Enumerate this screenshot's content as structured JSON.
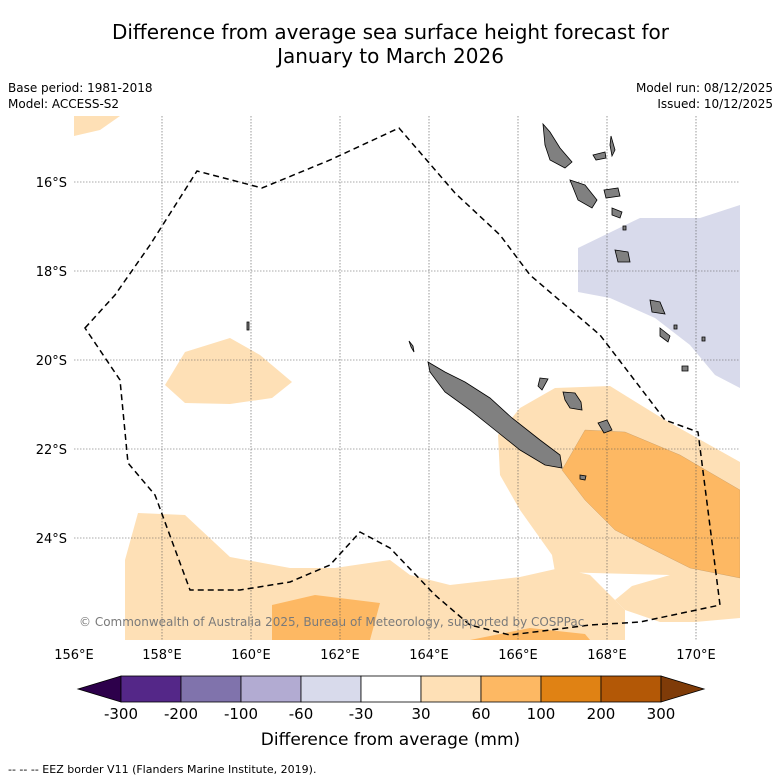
{
  "title_line1": "Difference from average sea surface height forecast for",
  "title_line2": "January to March 2026",
  "meta_left": {
    "base_period": "Base period: 1981-2018",
    "model": "Model: ACCESS-S2"
  },
  "meta_right": {
    "model_run": "Model run: 08/12/2025",
    "issued": "Issued: 10/12/2025"
  },
  "map": {
    "lat_labels": [
      "16°S",
      "18°S",
      "20°S",
      "22°S",
      "24°S"
    ],
    "lon_labels": [
      "156°E",
      "158°E",
      "160°E",
      "162°E",
      "164°E",
      "166°E",
      "168°E",
      "170°E"
    ],
    "copyright": "© Commonwealth of Australia 2025, Bureau of Meteorology, supported by COSPPac",
    "land_color": "#808080",
    "eez_color": "#000000"
  },
  "colorbar": {
    "title": "Difference from average (mm)",
    "labels": [
      "-300",
      "-200",
      "-100",
      "-60",
      "-30",
      "30",
      "60",
      "100",
      "200",
      "300"
    ],
    "colors": [
      "#2d004b",
      "#542788",
      "#8073ac",
      "#b2abd2",
      "#d8daeb",
      "#ffffff",
      "#fee0b6",
      "#fdb863",
      "#e08214",
      "#b35806",
      "#7f3b08"
    ]
  },
  "footer": "--  --  -- EEZ border V11 (Flanders Marine Institute, 2019)."
}
